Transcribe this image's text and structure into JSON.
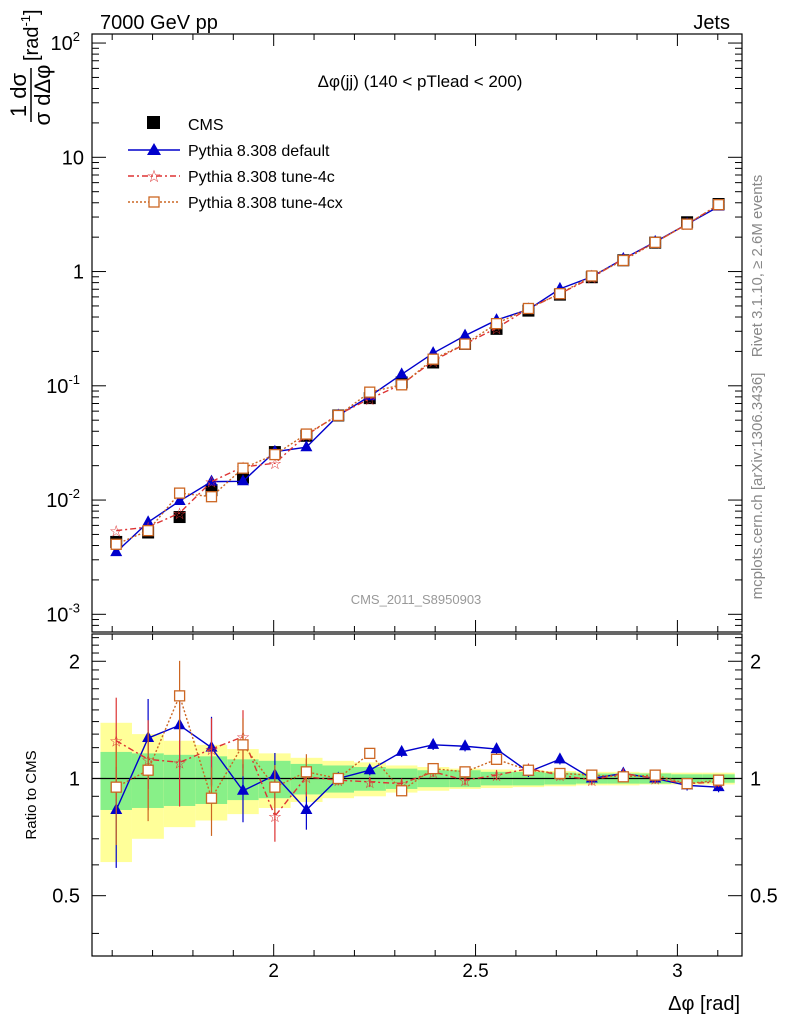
{
  "header": {
    "left": "7000 GeV pp",
    "right": "Jets"
  },
  "side_labels": {
    "rivet": "Rivet 3.1.10, ≥ 2.6M events",
    "mcplots": "mcplots.cern.ch [arXiv:1306.3436]"
  },
  "plot_title": "Δφ(jj) (140 < pTlead <  200)",
  "watermark": "CMS_2011_S8950903",
  "axes": {
    "ylabel_main_num": "1 dσ",
    "ylabel_main_den": "σ dΔφ",
    "ylabel_main_unit": "[rad",
    "ylabel_main_unit_sup": "-1",
    "ylabel_main_unit_close": "]",
    "ylabel_ratio": "Ratio to CMS",
    "xlabel": "Δφ [rad]"
  },
  "ticks": {
    "x": [
      "2",
      "2.5",
      "3"
    ],
    "y_main": [
      {
        "base": "10",
        "exp": "-3"
      },
      {
        "base": "10",
        "exp": "-2"
      },
      {
        "base": "10",
        "exp": "-1"
      },
      {
        "base": "1",
        "exp": ""
      },
      {
        "base": "10",
        "exp": ""
      },
      {
        "base": "10",
        "exp": "2"
      }
    ],
    "y_ratio": [
      "0.5",
      "1",
      "2"
    ]
  },
  "legend": [
    {
      "name": "CMS",
      "color": "#000000"
    },
    {
      "name": "Pythia 8.308 default",
      "color": "#0000cc"
    },
    {
      "name": "Pythia 8.308 tune-4c",
      "color": "#dd3333"
    },
    {
      "name": "Pythia 8.308 tune-4cx",
      "color": "#cc6622"
    }
  ],
  "chart_data": {
    "type": "line",
    "xlim": [
      1.55,
      3.16
    ],
    "ylim_main": [
      0.0007,
      120
    ],
    "ylim_ratio": [
      0.35,
      2.35
    ],
    "y_scale": "log",
    "bin_edges": [
      1.571,
      1.649,
      1.728,
      1.806,
      1.885,
      1.963,
      2.042,
      2.121,
      2.199,
      2.278,
      2.356,
      2.435,
      2.513,
      2.592,
      2.67,
      2.749,
      2.827,
      2.906,
      2.985,
      3.063,
      3.142
    ],
    "x": [
      1.61,
      1.689,
      1.767,
      1.846,
      1.924,
      2.003,
      2.081,
      2.16,
      2.238,
      2.317,
      2.395,
      2.474,
      2.552,
      2.631,
      2.709,
      2.788,
      2.866,
      2.945,
      3.024,
      3.102
    ],
    "band_inner": [
      0.17,
      0.16,
      0.15,
      0.14,
      0.12,
      0.11,
      0.09,
      0.08,
      0.07,
      0.06,
      0.05,
      0.05,
      0.04,
      0.04,
      0.035,
      0.03,
      0.03,
      0.03,
      0.025,
      0.025
    ],
    "band_outer": [
      0.39,
      0.3,
      0.25,
      0.22,
      0.19,
      0.16,
      0.13,
      0.11,
      0.1,
      0.08,
      0.07,
      0.06,
      0.055,
      0.05,
      0.045,
      0.04,
      0.04,
      0.035,
      0.035,
      0.035
    ],
    "series": [
      {
        "name": "CMS",
        "color": "#000000",
        "values": [
          0.0043,
          0.0052,
          0.0071,
          0.0122,
          0.0157,
          0.0263,
          0.0365,
          0.055,
          0.078,
          0.107,
          0.16,
          0.233,
          0.315,
          0.455,
          0.628,
          0.892,
          1.255,
          1.79,
          2.7,
          3.9
        ]
      },
      {
        "name": "Pythia 8.308 default",
        "color": "#0000cc",
        "values": [
          0.0035,
          0.0064,
          0.0098,
          0.0145,
          0.0146,
          0.0265,
          0.029,
          0.055,
          0.081,
          0.126,
          0.193,
          0.275,
          0.376,
          0.466,
          0.705,
          0.9,
          1.29,
          1.82,
          2.6,
          3.7
        ],
        "ratio": [
          0.83,
          1.27,
          1.37,
          1.2,
          0.93,
          1.02,
          0.83,
          1.0,
          1.05,
          1.17,
          1.22,
          1.21,
          1.19,
          1.04,
          1.12,
          1.0,
          1.03,
          1.0,
          0.96,
          0.95
        ]
      },
      {
        "name": "Pythia 8.308 tune-4c",
        "color": "#dd3333",
        "values": [
          0.0054,
          0.0058,
          0.0077,
          0.0145,
          0.0195,
          0.021,
          0.037,
          0.056,
          0.077,
          0.103,
          0.165,
          0.232,
          0.32,
          0.475,
          0.64,
          0.885,
          1.29,
          1.8,
          2.6,
          3.85
        ],
        "ratio": [
          1.25,
          1.12,
          1.1,
          1.19,
          1.28,
          0.8,
          1.01,
          0.99,
          0.98,
          0.97,
          1.04,
          0.99,
          1.02,
          1.06,
          1.02,
          0.99,
          1.03,
          1.0,
          0.97,
          0.98
        ]
      },
      {
        "name": "Pythia 8.308 tune-4cx",
        "color": "#cc6622",
        "values": [
          0.0041,
          0.0054,
          0.0115,
          0.0107,
          0.019,
          0.025,
          0.0378,
          0.055,
          0.088,
          0.102,
          0.171,
          0.232,
          0.35,
          0.475,
          0.64,
          0.915,
          1.25,
          1.8,
          2.6,
          3.85
        ],
        "ratio": [
          0.95,
          1.05,
          1.63,
          0.89,
          1.22,
          0.95,
          1.04,
          1.0,
          1.16,
          0.93,
          1.06,
          1.04,
          1.12,
          1.05,
          1.03,
          1.02,
          1.01,
          1.02,
          0.97,
          0.99
        ]
      }
    ]
  }
}
